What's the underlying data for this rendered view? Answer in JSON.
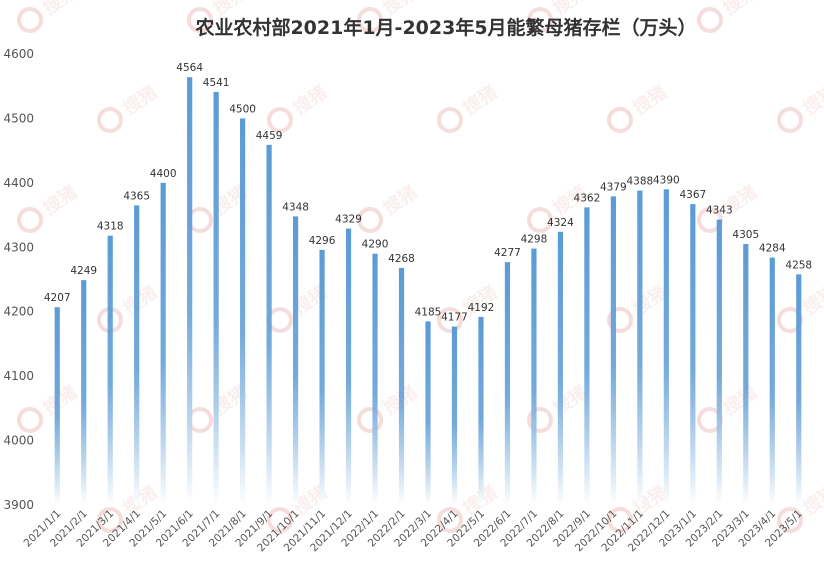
{
  "chart_data": {
    "type": "bar",
    "title": "农业农村部2021年1月-2023年5月能繁母猪存栏（万头）",
    "xlabel": "",
    "ylabel": "",
    "ylim": [
      3900,
      4600
    ],
    "yticks": [
      3900,
      4000,
      4100,
      4200,
      4300,
      4400,
      4500,
      4600
    ],
    "grid": false,
    "legend": "none",
    "categories": [
      "2021/1/1",
      "2021/2/1",
      "2021/3/1",
      "2021/4/1",
      "2021/5/1",
      "2021/6/1",
      "2021/7/1",
      "2021/8/1",
      "2021/9/1",
      "2021/10/1",
      "2021/11/1",
      "2021/12/1",
      "2022/1/1",
      "2022/2/1",
      "2022/3/1",
      "2022/4/1",
      "2022/5/1",
      "2022/6/1",
      "2022/7/1",
      "2022/8/1",
      "2022/9/1",
      "2022/10/1",
      "2022/11/1",
      "2022/12/1",
      "2023/1/1",
      "2023/2/1",
      "2023/3/1",
      "2023/4/1",
      "2023/5/1"
    ],
    "values": [
      4207,
      4249,
      4318,
      4365,
      4400,
      4564,
      4541,
      4500,
      4459,
      4348,
      4296,
      4329,
      4290,
      4268,
      4185,
      4177,
      4192,
      4277,
      4298,
      4324,
      4362,
      4379,
      4388,
      4390,
      4367,
      4343,
      4305,
      4284,
      4258
    ],
    "bar_color": "#5b9bd5",
    "bar_fade_color": "#ffffff"
  },
  "watermark": {
    "text": "搜猪",
    "color": "#e8a0a0"
  }
}
